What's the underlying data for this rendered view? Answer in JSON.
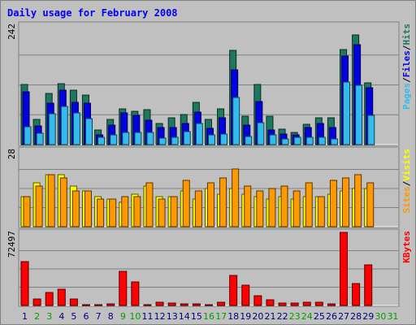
{
  "chart_data": {
    "type": "bar",
    "title": "Daily usage for February 2008",
    "categories": [
      "1",
      "2",
      "3",
      "4",
      "5",
      "6",
      "7",
      "8",
      "9",
      "10",
      "11",
      "12",
      "13",
      "14",
      "15",
      "16",
      "17",
      "18",
      "19",
      "20",
      "21",
      "22",
      "23",
      "24",
      "25",
      "26",
      "27",
      "28",
      "29",
      "30",
      "31"
    ],
    "weekend_days": [
      "2",
      "3",
      "9",
      "10",
      "16",
      "17",
      "23",
      "24",
      "30",
      "31"
    ],
    "panels": [
      {
        "id": "requests",
        "ymax_label": "242",
        "ymax": 242,
        "legend": [
          "Pages",
          "/",
          "Files",
          "/",
          "Hits"
        ],
        "series": [
          {
            "name": "Hits",
            "color": "#1e7860",
            "values": [
              122,
              51,
              103,
              124,
              110,
              101,
              29,
              51,
              72,
              68,
              70,
              43,
              54,
              61,
              86,
              51,
              73,
              191,
              58,
              122,
              58,
              31,
              24,
              41,
              54,
              54,
              193,
              222,
              125,
              0,
              0
            ]
          },
          {
            "name": "Files",
            "color": "#0000e0",
            "values": [
              107,
              38,
              84,
              111,
              86,
              84,
              20,
              40,
              64,
              60,
              50,
              34,
              35,
              43,
              66,
              33,
              55,
              152,
              39,
              87,
              29,
              21,
              20,
              34,
              43,
              34,
              180,
              203,
              116,
              0,
              0
            ]
          },
          {
            "name": "Pages",
            "color": "#33bbf0",
            "values": [
              36,
              23,
              63,
              78,
              64,
              52,
              15,
              20,
              25,
              25,
              24,
              13,
              15,
              26,
              43,
              20,
              22,
              96,
              17,
              45,
              19,
              12,
              14,
              15,
              15,
              12,
              127,
              120,
              60,
              0,
              0
            ]
          }
        ]
      },
      {
        "id": "visits",
        "ymax_label": "28",
        "ymax": 28,
        "legend": [
          "Sites",
          "/",
          "Visits"
        ],
        "series": [
          {
            "name": "Visits",
            "color": "#ffff00",
            "values": [
              11,
              16,
              19,
              19,
              15,
              13,
              11,
              10,
              9,
              12,
              15,
              11,
              11,
              13,
              10,
              14,
              12,
              14,
              12,
              11,
              10,
              11,
              10,
              11,
              11,
              12,
              13,
              14,
              14,
              0,
              0
            ]
          },
          {
            "name": "Sites",
            "color": "#ff9900",
            "values": [
              11,
              15,
              19,
              18,
              13,
              13,
              10,
              10,
              11,
              11,
              16,
              10,
              11,
              17,
              13,
              16,
              18,
              21,
              15,
              13,
              14,
              15,
              13,
              16,
              11,
              17,
              18,
              19,
              16,
              0,
              0
            ]
          }
        ]
      },
      {
        "id": "kbytes",
        "ymax_label": "72497",
        "ymax": 72497,
        "legend": [
          "KBytes"
        ],
        "series": [
          {
            "name": "KBytes",
            "color": "#ff0000",
            "values": [
              43420,
              6400,
              13040,
              16470,
              6370,
              610,
              280,
              1230,
              33630,
              23700,
              870,
              2890,
              2020,
              1980,
              1890,
              1080,
              2830,
              29470,
              20350,
              9860,
              5610,
              2340,
              2180,
              3420,
              3120,
              1290,
              72497,
              21700,
              40230,
              0,
              0
            ]
          }
        ]
      }
    ]
  },
  "colors": {
    "frame_bg": "#c0c0c0",
    "title": "#0000ff",
    "weekday_label": "#000080",
    "weekend_label": "#00a000",
    "pages": "#33bbf0",
    "files": "#0000e0",
    "hits": "#1e7860",
    "sites": "#ff9900",
    "visits": "#ffff00",
    "kbytes": "#ff0000"
  }
}
